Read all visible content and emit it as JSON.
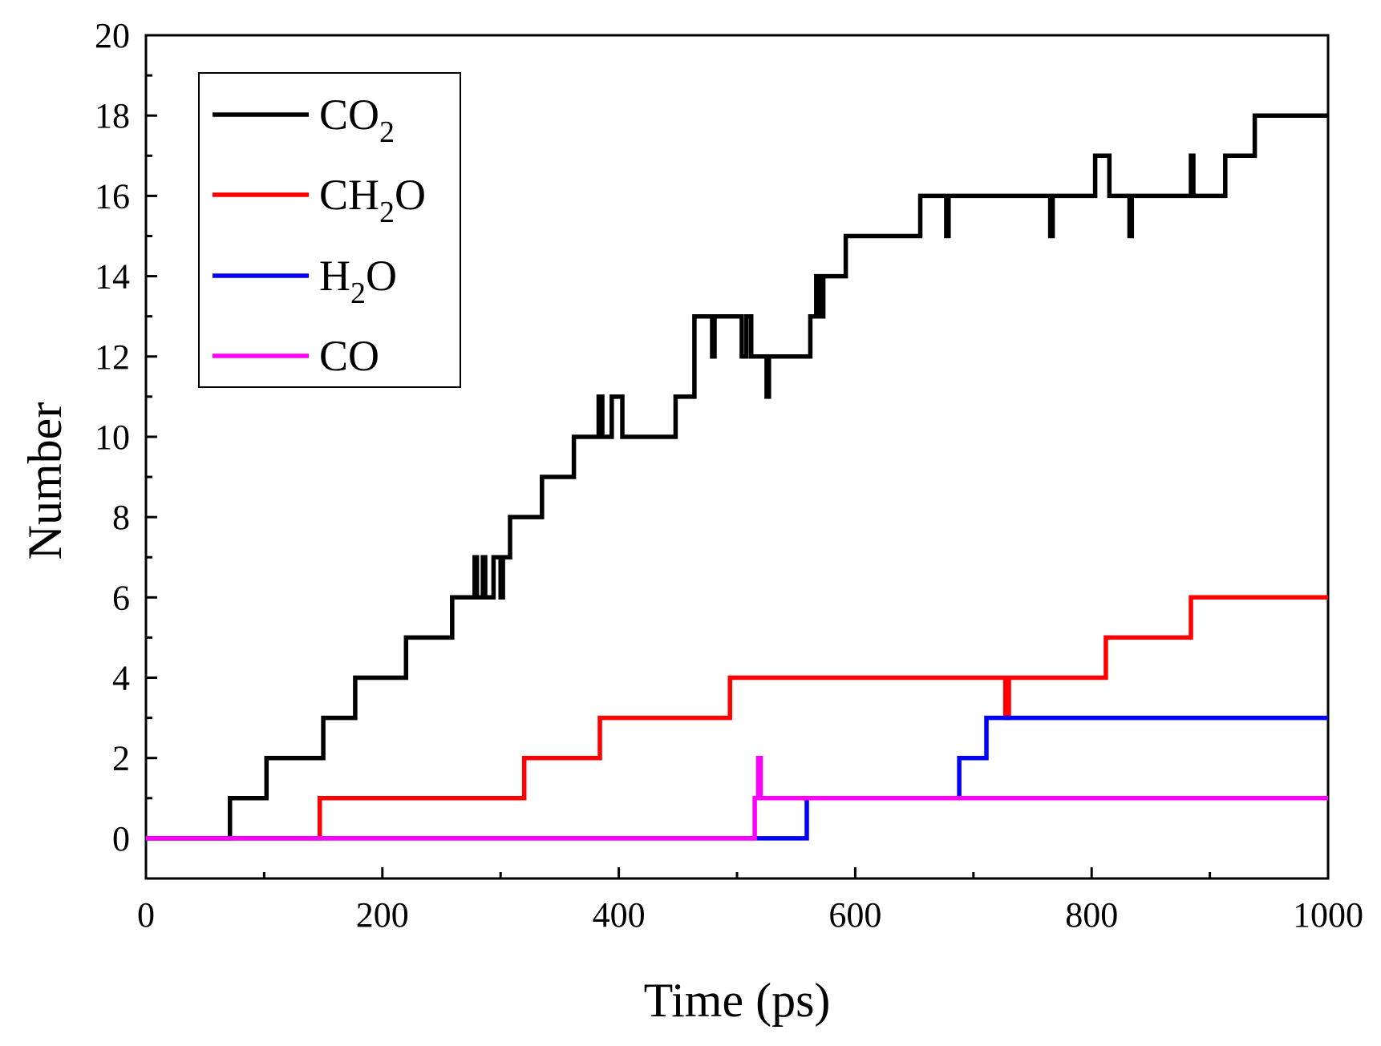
{
  "chart_data": {
    "type": "line",
    "title": "",
    "xlabel": "Time (ps)",
    "ylabel": "Number",
    "xlim": [
      0,
      1000
    ],
    "ylim": [
      -1,
      20
    ],
    "x_ticks": [
      0,
      200,
      400,
      600,
      800,
      1000
    ],
    "y_ticks": [
      0,
      2,
      4,
      6,
      8,
      10,
      12,
      14,
      16,
      18,
      20
    ],
    "grid": false,
    "legend_position": "top-left",
    "series": [
      {
        "name": "CO2",
        "legend_base": "CO",
        "legend_sub": "2",
        "legend_tail": "",
        "color": "#000000",
        "points": [
          [
            0,
            0
          ],
          [
            71,
            0
          ],
          [
            71,
            1
          ],
          [
            102,
            1
          ],
          [
            102,
            2
          ],
          [
            150,
            2
          ],
          [
            150,
            3
          ],
          [
            177,
            3
          ],
          [
            177,
            4
          ],
          [
            220,
            4
          ],
          [
            220,
            5
          ],
          [
            259,
            5
          ],
          [
            259,
            6
          ],
          [
            278,
            6
          ],
          [
            278,
            7
          ],
          [
            280,
            7
          ],
          [
            280,
            6
          ],
          [
            285,
            6
          ],
          [
            285,
            7
          ],
          [
            287,
            7
          ],
          [
            287,
            6
          ],
          [
            294,
            6
          ],
          [
            294,
            7
          ],
          [
            300,
            7
          ],
          [
            300,
            6
          ],
          [
            302,
            6
          ],
          [
            302,
            7
          ],
          [
            308,
            7
          ],
          [
            308,
            8
          ],
          [
            335,
            8
          ],
          [
            335,
            9
          ],
          [
            362,
            9
          ],
          [
            362,
            10
          ],
          [
            383,
            10
          ],
          [
            383,
            11
          ],
          [
            386,
            11
          ],
          [
            386,
            10
          ],
          [
            394,
            10
          ],
          [
            394,
            11
          ],
          [
            403,
            11
          ],
          [
            403,
            10
          ],
          [
            448,
            10
          ],
          [
            448,
            11
          ],
          [
            464,
            11
          ],
          [
            464,
            13
          ],
          [
            479,
            13
          ],
          [
            479,
            12
          ],
          [
            481,
            12
          ],
          [
            481,
            13
          ],
          [
            504,
            13
          ],
          [
            504,
            12
          ],
          [
            508,
            12
          ],
          [
            508,
            13
          ],
          [
            512,
            13
          ],
          [
            512,
            12
          ],
          [
            525,
            12
          ],
          [
            525,
            11
          ],
          [
            527,
            11
          ],
          [
            527,
            12
          ],
          [
            562,
            12
          ],
          [
            562,
            13
          ],
          [
            567,
            13
          ],
          [
            567,
            14
          ],
          [
            570,
            14
          ],
          [
            570,
            13
          ],
          [
            573,
            13
          ],
          [
            573,
            14
          ],
          [
            592,
            14
          ],
          [
            592,
            15
          ],
          [
            655,
            15
          ],
          [
            655,
            16
          ],
          [
            677,
            16
          ],
          [
            677,
            15
          ],
          [
            679,
            15
          ],
          [
            679,
            16
          ],
          [
            765,
            16
          ],
          [
            765,
            15
          ],
          [
            767,
            15
          ],
          [
            767,
            16
          ],
          [
            803,
            16
          ],
          [
            803,
            17
          ],
          [
            815,
            17
          ],
          [
            815,
            16
          ],
          [
            832,
            16
          ],
          [
            832,
            15
          ],
          [
            834,
            15
          ],
          [
            834,
            16
          ],
          [
            884,
            16
          ],
          [
            884,
            17
          ],
          [
            886,
            17
          ],
          [
            886,
            16
          ],
          [
            913,
            16
          ],
          [
            913,
            17
          ],
          [
            938,
            17
          ],
          [
            938,
            18
          ],
          [
            1000,
            18
          ]
        ]
      },
      {
        "name": "CH2O",
        "legend_base": "CH",
        "legend_sub": "2",
        "legend_tail": "O",
        "color": "#ff0000",
        "points": [
          [
            0,
            0
          ],
          [
            147,
            0
          ],
          [
            147,
            1
          ],
          [
            320,
            1
          ],
          [
            320,
            2
          ],
          [
            384,
            2
          ],
          [
            384,
            3
          ],
          [
            494,
            3
          ],
          [
            494,
            4
          ],
          [
            727,
            4
          ],
          [
            727,
            3
          ],
          [
            730,
            3
          ],
          [
            730,
            4
          ],
          [
            812,
            4
          ],
          [
            812,
            5
          ],
          [
            884,
            5
          ],
          [
            884,
            6
          ],
          [
            1000,
            6
          ]
        ]
      },
      {
        "name": "H2O",
        "legend_base": "H",
        "legend_sub": "2",
        "legend_tail": "O",
        "color": "#0000ff",
        "points": [
          [
            0,
            0
          ],
          [
            559,
            0
          ],
          [
            559,
            1
          ],
          [
            688,
            1
          ],
          [
            688,
            2
          ],
          [
            711,
            2
          ],
          [
            711,
            3
          ],
          [
            1000,
            3
          ]
        ]
      },
      {
        "name": "CO",
        "legend_base": "CO",
        "legend_sub": "",
        "legend_tail": "",
        "color": "#ff00ff",
        "points": [
          [
            0,
            0
          ],
          [
            515,
            0
          ],
          [
            515,
            1
          ],
          [
            518,
            1
          ],
          [
            518,
            2
          ],
          [
            520,
            2
          ],
          [
            520,
            1
          ],
          [
            1000,
            1
          ]
        ]
      }
    ]
  }
}
